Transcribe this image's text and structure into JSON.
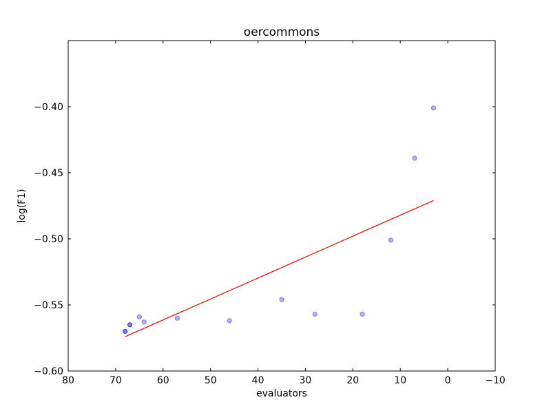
{
  "chart_data": {
    "type": "scatter",
    "title": "oercommons",
    "xlabel": "evaluators",
    "ylabel": "log(F1)",
    "xlim": [
      80,
      -10
    ],
    "ylim": [
      -0.6,
      -0.35
    ],
    "x_ticks": [
      80,
      70,
      60,
      50,
      40,
      30,
      20,
      10,
      0,
      -10
    ],
    "x_tick_labels": [
      "80",
      "70",
      "60",
      "50",
      "40",
      "30",
      "20",
      "10",
      "0",
      "−10"
    ],
    "y_ticks": [
      -0.6,
      -0.55,
      -0.5,
      -0.45,
      -0.4
    ],
    "y_tick_labels": [
      "−0.60",
      "−0.55",
      "−0.50",
      "−0.45",
      "−0.40"
    ],
    "grid": false,
    "points": [
      {
        "x": 68,
        "y": -0.57
      },
      {
        "x": 68,
        "y": -0.57
      },
      {
        "x": 67,
        "y": -0.565
      },
      {
        "x": 67,
        "y": -0.565
      },
      {
        "x": 65,
        "y": -0.559
      },
      {
        "x": 64,
        "y": -0.563
      },
      {
        "x": 57,
        "y": -0.56
      },
      {
        "x": 46,
        "y": -0.562
      },
      {
        "x": 35,
        "y": -0.546
      },
      {
        "x": 28,
        "y": -0.557
      },
      {
        "x": 18,
        "y": -0.557
      },
      {
        "x": 12,
        "y": -0.501
      },
      {
        "x": 7,
        "y": -0.439
      },
      {
        "x": 3,
        "y": -0.401
      }
    ],
    "fit_line": {
      "x": [
        68,
        3
      ],
      "y": [
        -0.574,
        -0.471
      ]
    },
    "colors": {
      "points": "#0000cc",
      "fit_line": "#ff0000"
    }
  }
}
